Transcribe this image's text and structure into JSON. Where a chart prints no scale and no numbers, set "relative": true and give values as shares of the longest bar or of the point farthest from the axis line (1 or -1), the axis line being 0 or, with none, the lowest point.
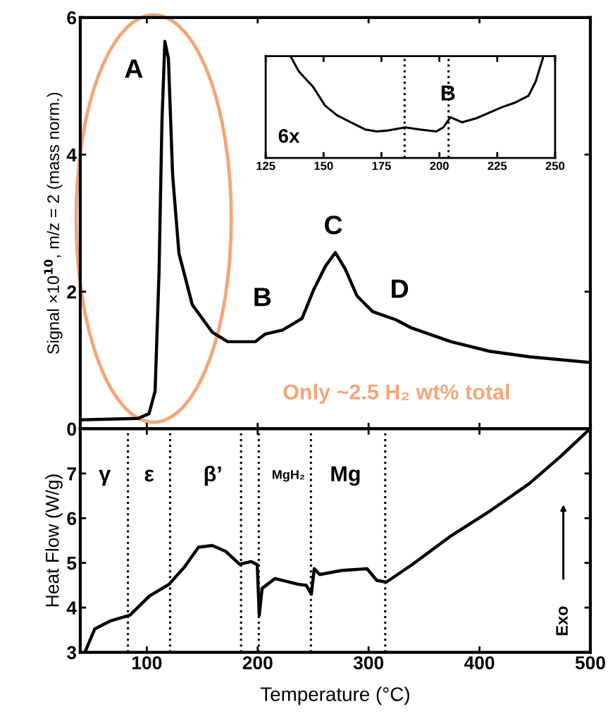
{
  "chart_data": [
    {
      "type": "line",
      "ylabel": "Signal ×10$^{10}$, m/z = 2 (mass norm.)",
      "xlim": [
        40,
        500
      ],
      "ylim": [
        0,
        6
      ],
      "xticks": [
        100,
        200,
        300,
        400,
        500
      ],
      "yticks": [
        0,
        2,
        4,
        6
      ],
      "tick_labels": "y",
      "grid": false,
      "legend": false,
      "marker": "none",
      "line_style": "solid",
      "x": [
        40.6,
        92,
        102,
        107.5,
        111,
        113.7,
        116.3,
        119.5,
        123.3,
        129,
        141,
        159,
        173,
        197.7,
        206.6,
        222.4,
        240,
        250.5,
        261,
        270,
        279,
        289.5,
        303.6,
        324.7,
        338.8,
        374.4,
        409.4,
        445,
        497.7
      ],
      "series": [
        {
          "color": "#000000",
          "values": [
            0.13,
            0.15,
            0.22,
            0.55,
            2.26,
            4.5,
            5.65,
            5.4,
            3.7,
            2.56,
            1.81,
            1.41,
            1.27,
            1.27,
            1.38,
            1.44,
            1.61,
            2.03,
            2.37,
            2.57,
            2.33,
            1.94,
            1.71,
            1.59,
            1.47,
            1.27,
            1.13,
            1.05,
            0.97
          ]
        }
      ],
      "annotations": [
        "A",
        "B",
        "C",
        "D",
        "Only ~2.5 H₂ wt% total"
      ]
    },
    {
      "type": "line",
      "relative": true,
      "xlim": [
        125,
        250
      ],
      "xticks": [
        125,
        150,
        175,
        200,
        225,
        250
      ],
      "tick_labels": "x",
      "grid": false,
      "legend": false,
      "marker": "none",
      "line_style": "solid",
      "x": [
        135.7,
        139.3,
        145.4,
        150.6,
        155.7,
        161.8,
        167.9,
        173,
        178,
        185.3,
        191.5,
        198.6,
        201.7,
        204.8,
        209.9,
        216,
        222.1,
        227.2,
        232.4,
        238.5,
        241.6,
        245
      ],
      "series": [
        {
          "color": "#000000",
          "values": [
            1,
            0.85,
            0.7,
            0.515,
            0.42,
            0.35,
            0.28,
            0.26,
            0.27,
            0.3,
            0.28,
            0.26,
            0.3,
            0.4,
            0.35,
            0.39,
            0.45,
            0.5,
            0.54,
            0.61,
            0.75,
            1
          ]
        }
      ],
      "ref_lines": [
        {
          "axis": "x",
          "value": 185,
          "line_style": "dotted",
          "color": "#000000"
        },
        {
          "axis": "x",
          "value": 204,
          "line_style": "dotted",
          "color": "#000000"
        }
      ],
      "annotations": [
        "B",
        "6x"
      ]
    },
    {
      "type": "line",
      "xlabel": "Temperature (°C)",
      "ylabel": "Heat Flow (W/g)",
      "xlim": [
        40,
        500
      ],
      "ylim": [
        3,
        8
      ],
      "xticks": [
        100,
        200,
        300,
        400,
        500
      ],
      "yticks": [
        3,
        4,
        5,
        6,
        7
      ],
      "grid": false,
      "legend": false,
      "marker": "none",
      "line_style": "solid",
      "x": [
        44.2,
        53,
        67,
        84.8,
        102.5,
        120,
        134,
        146.6,
        159,
        171,
        183.7,
        194,
        199.6,
        201.4,
        204,
        215.5,
        236.7,
        243.7,
        248.4,
        251,
        256,
        275.6,
        298.6,
        307.4,
        316,
        339.2,
        374.6,
        410,
        445.2,
        473.5,
        498
      ],
      "series": [
        {
          "color": "#000000",
          "values": [
            3,
            3.52,
            3.7,
            3.83,
            4.26,
            4.52,
            4.91,
            5.35,
            5.39,
            5.26,
            4.97,
            5.03,
            4.96,
            3.83,
            4.43,
            4.65,
            4.52,
            4.5,
            4.3,
            4.87,
            4.74,
            4.83,
            4.87,
            4.61,
            4.57,
            4.96,
            5.61,
            6.17,
            6.78,
            7.39,
            7.96
          ]
        }
      ],
      "ref_lines": [
        {
          "axis": "x",
          "value": 83,
          "line_style": "dotted",
          "color": "#000000"
        },
        {
          "axis": "x",
          "value": 121,
          "line_style": "dotted",
          "color": "#000000"
        },
        {
          "axis": "x",
          "value": 185,
          "line_style": "dotted",
          "color": "#000000"
        },
        {
          "axis": "x",
          "value": 201,
          "line_style": "dotted",
          "color": "#000000"
        },
        {
          "axis": "x",
          "value": 248,
          "line_style": "dotted",
          "color": "#000000"
        },
        {
          "axis": "x",
          "value": 315,
          "line_style": "dotted",
          "color": "#000000"
        }
      ],
      "annotations": [
        "γ",
        "ε",
        "β’",
        "MgH₂",
        "Mg",
        "Exo"
      ]
    }
  ]
}
